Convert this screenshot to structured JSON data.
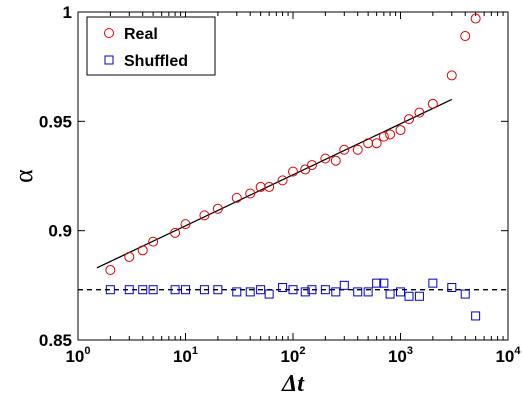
{
  "chart_data": {
    "type": "scatter",
    "xlabel": "Δt",
    "ylabel": "α",
    "xscale": "log",
    "xlim": [
      1,
      10000
    ],
    "ylim": [
      0.85,
      1.0
    ],
    "grid": false,
    "legend_position": "top-left",
    "x_ticks": [
      {
        "value": 1,
        "base": "10",
        "exp": "0"
      },
      {
        "value": 10,
        "base": "10",
        "exp": "1"
      },
      {
        "value": 100,
        "base": "10",
        "exp": "2"
      },
      {
        "value": 1000,
        "base": "10",
        "exp": "3"
      },
      {
        "value": 10000,
        "base": "10",
        "exp": "4"
      }
    ],
    "y_ticks": [
      {
        "value": 0.85,
        "label": "0.85"
      },
      {
        "value": 0.9,
        "label": "0.9"
      },
      {
        "value": 0.95,
        "label": "0.95"
      },
      {
        "value": 1.0,
        "label": "1"
      }
    ],
    "series": [
      {
        "name": "Real",
        "marker": "circle",
        "color": "#dd0000",
        "x": [
          2,
          3,
          4,
          5,
          8,
          10,
          15,
          20,
          30,
          40,
          50,
          60,
          80,
          100,
          130,
          150,
          200,
          250,
          300,
          400,
          500,
          600,
          700,
          800,
          1000,
          1200,
          1500,
          2000,
          3000,
          4000,
          5000
        ],
        "y": [
          0.882,
          0.888,
          0.891,
          0.895,
          0.899,
          0.903,
          0.907,
          0.91,
          0.915,
          0.917,
          0.92,
          0.92,
          0.923,
          0.927,
          0.928,
          0.93,
          0.933,
          0.932,
          0.937,
          0.937,
          0.94,
          0.94,
          0.943,
          0.944,
          0.946,
          0.951,
          0.954,
          0.958,
          0.971,
          0.989,
          0.997
        ]
      },
      {
        "name": "Shuffled",
        "marker": "square",
        "color": "#0000cc",
        "x": [
          2,
          3,
          4,
          5,
          8,
          10,
          15,
          20,
          30,
          40,
          50,
          60,
          80,
          100,
          130,
          150,
          200,
          250,
          300,
          400,
          500,
          600,
          700,
          800,
          1000,
          1200,
          1500,
          2000,
          3000,
          4000,
          5000
        ],
        "y": [
          0.873,
          0.873,
          0.873,
          0.873,
          0.873,
          0.873,
          0.873,
          0.873,
          0.872,
          0.872,
          0.873,
          0.871,
          0.874,
          0.873,
          0.872,
          0.873,
          0.873,
          0.872,
          0.875,
          0.872,
          0.872,
          0.876,
          0.876,
          0.871,
          0.872,
          0.87,
          0.87,
          0.876,
          0.874,
          0.871,
          0.861
        ]
      }
    ],
    "fit_lines": [
      {
        "style": "solid",
        "color": "#000000",
        "x": [
          1.5,
          3000
        ],
        "y": [
          0.883,
          0.96
        ]
      },
      {
        "style": "dashed",
        "color": "#000000",
        "x": [
          1,
          10000
        ],
        "y": [
          0.873,
          0.873
        ]
      }
    ]
  }
}
